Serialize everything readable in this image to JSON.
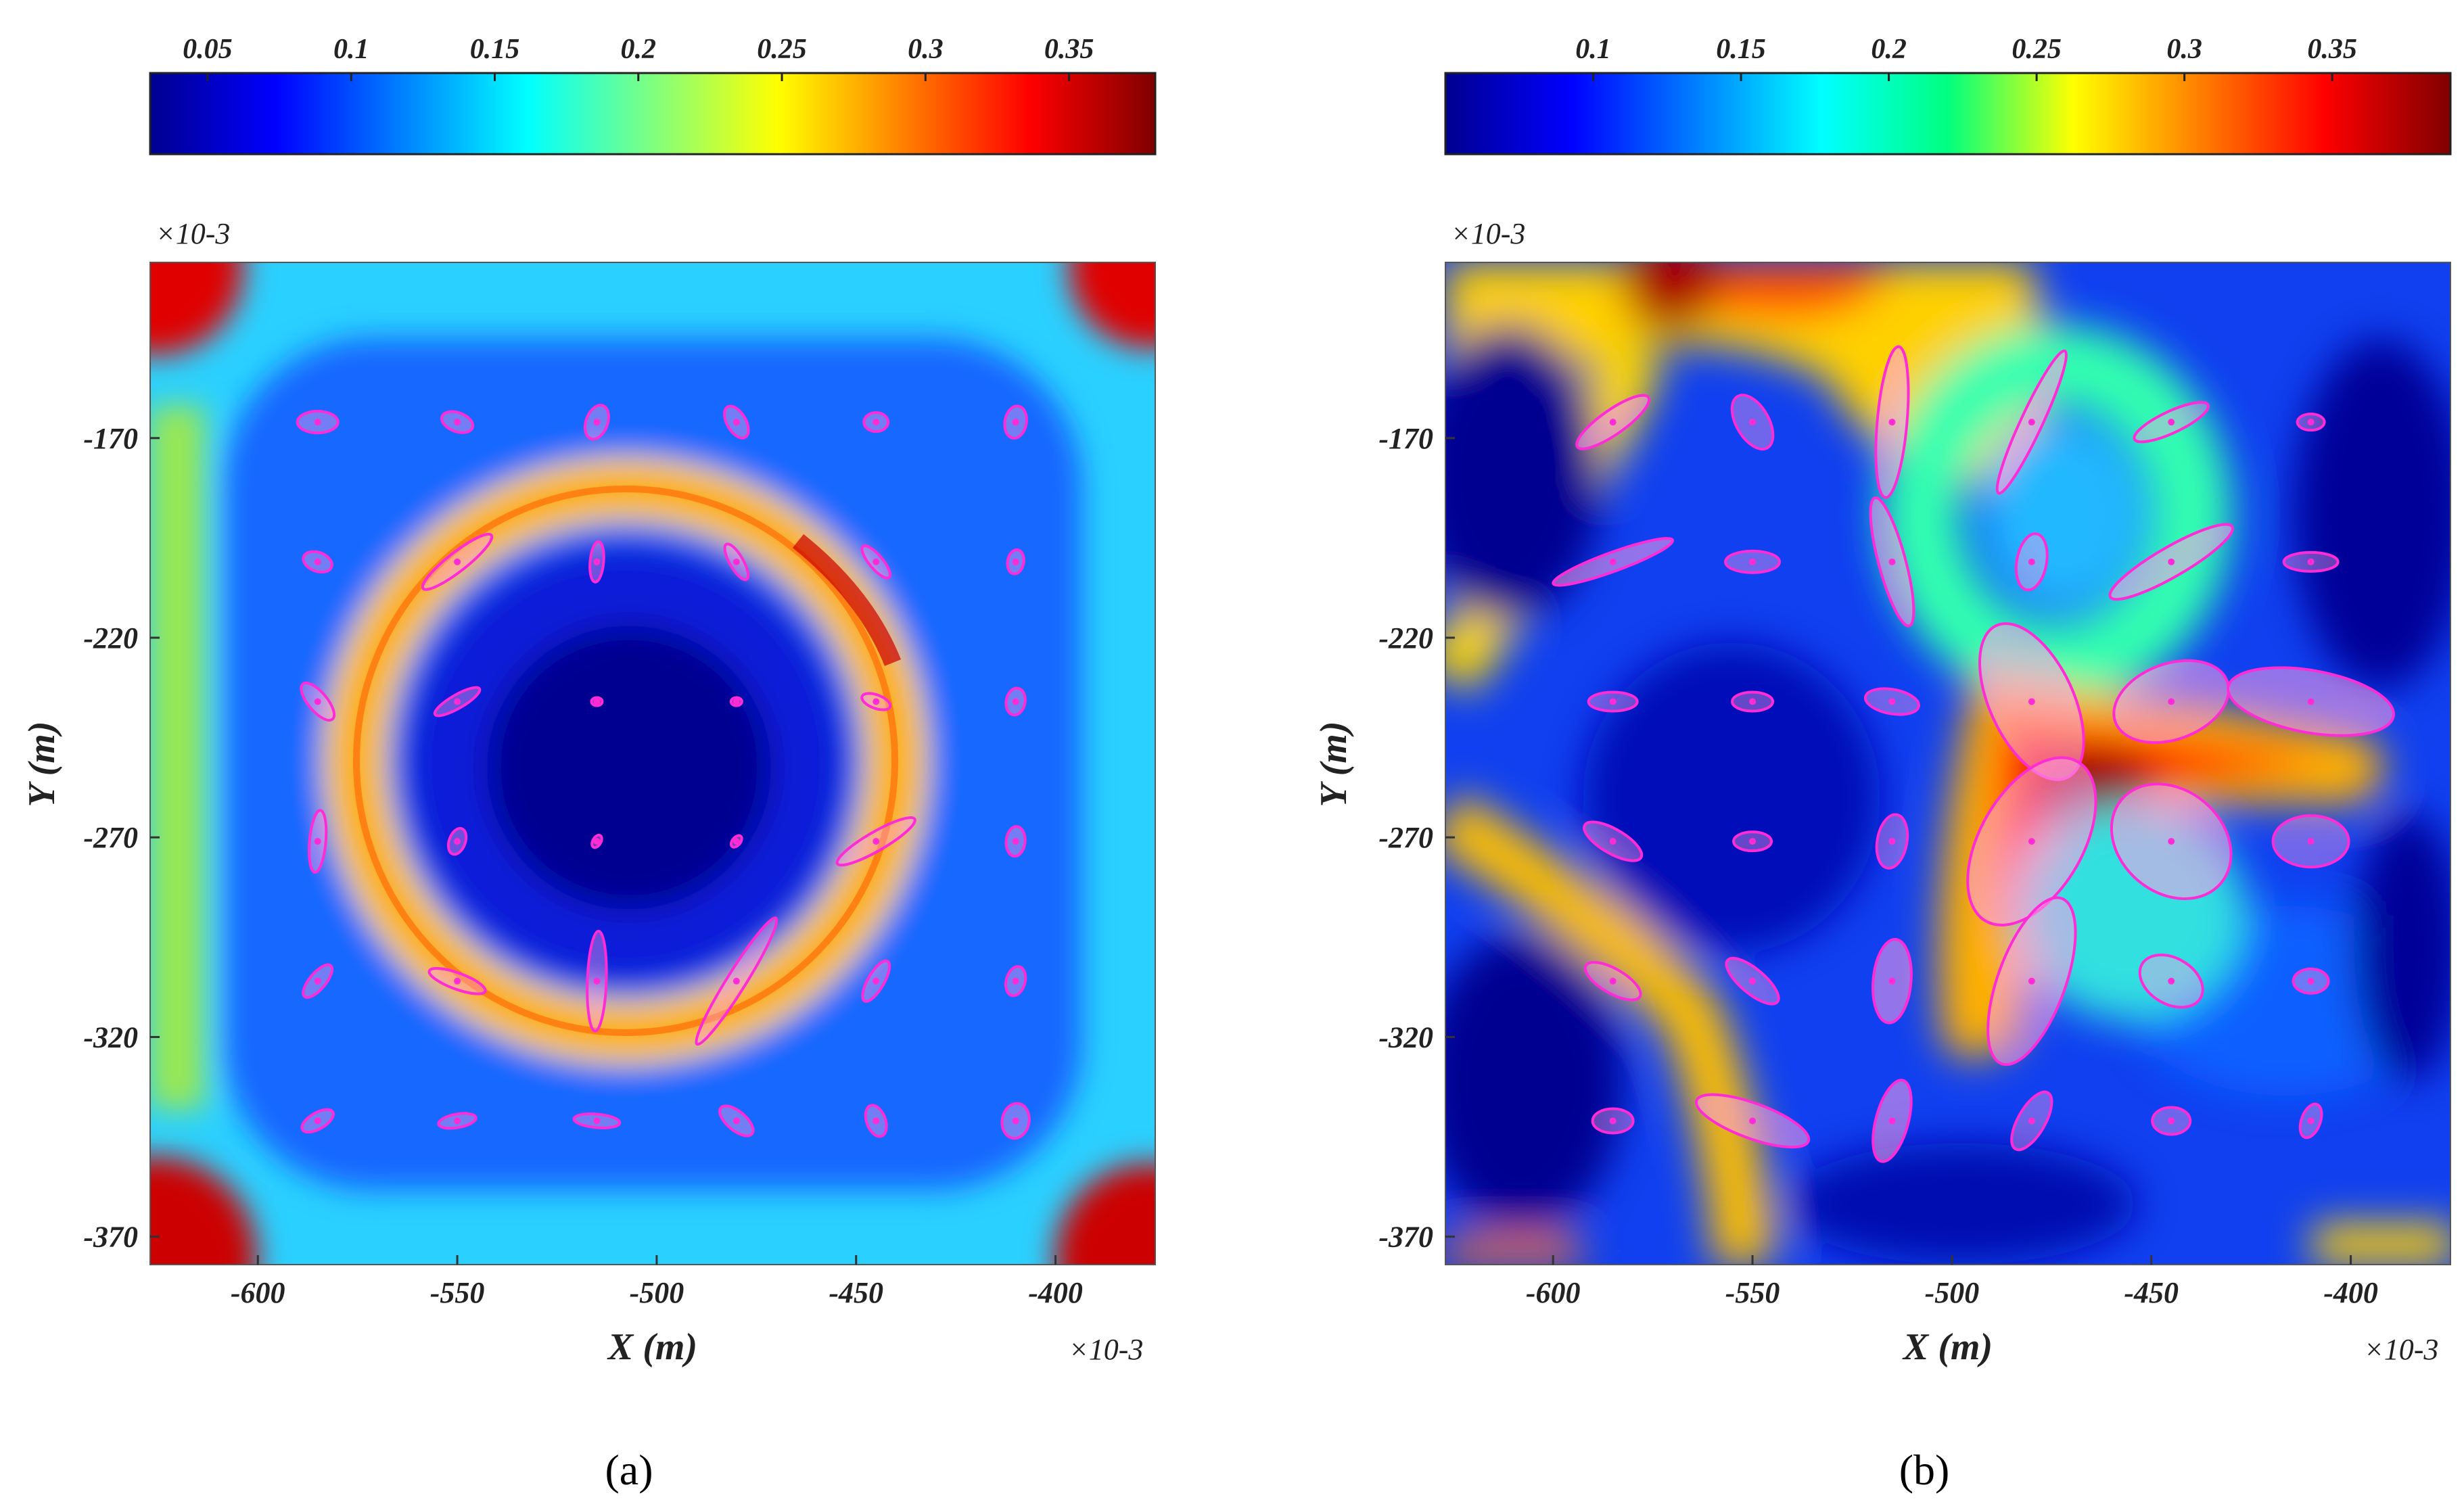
{
  "chart_data": [
    {
      "type": "heatmap",
      "panel_label": "(a)",
      "colormap": "jet",
      "colorbar": {
        "ticks": [
          "0.05",
          "0.1",
          "0.15",
          "0.2",
          "0.25",
          "0.3",
          "0.35"
        ],
        "range": [
          0.03,
          0.38
        ]
      },
      "xlabel": "X (m)",
      "ylabel": "Y (m)",
      "x_multiplier": "×10-3",
      "y_multiplier": "×10-3",
      "xticks": [
        "-600",
        "-550",
        "-500",
        "-450",
        "-400"
      ],
      "yticks": [
        "-170",
        "-220",
        "-270",
        "-320",
        "-370"
      ],
      "xlim": [
        -627,
        -375
      ],
      "ylim": [
        -377,
        -126
      ],
      "ellipse_grid": {
        "x": [
          -585,
          -550,
          -515,
          -480,
          -445,
          -410
        ],
        "y": [
          -166,
          -201,
          -236,
          -271,
          -306,
          -341
        ]
      },
      "field_description": "low values inside a ring of high values; corners high"
    },
    {
      "type": "heatmap",
      "panel_label": "(b)",
      "colormap": "jet",
      "colorbar": {
        "ticks": [
          "0.1",
          "0.15",
          "0.2",
          "0.25",
          "0.3",
          "0.35"
        ],
        "range": [
          0.05,
          0.39
        ]
      },
      "xlabel": "X (m)",
      "ylabel": "Y (m)",
      "x_multiplier": "×10-3",
      "y_multiplier": "×10-3",
      "xticks": [
        "-600",
        "-550",
        "-500",
        "-450",
        "-400"
      ],
      "yticks": [
        "-170",
        "-220",
        "-270",
        "-320",
        "-370"
      ],
      "xlim": [
        -627,
        -375
      ],
      "ylim": [
        -377,
        -126
      ],
      "ellipse_grid": {
        "x": [
          -585,
          -550,
          -515,
          -480,
          -445,
          -410
        ],
        "y": [
          -166,
          -201,
          -236,
          -271,
          -306,
          -341
        ]
      },
      "field_description": "high values concentrated near X≈-470, Y≈-260 and along the top; low values on the sides"
    }
  ],
  "colors": {
    "ellipse_stroke": "#ff2bd6",
    "ellipse_fill": "#ff9fe6"
  }
}
